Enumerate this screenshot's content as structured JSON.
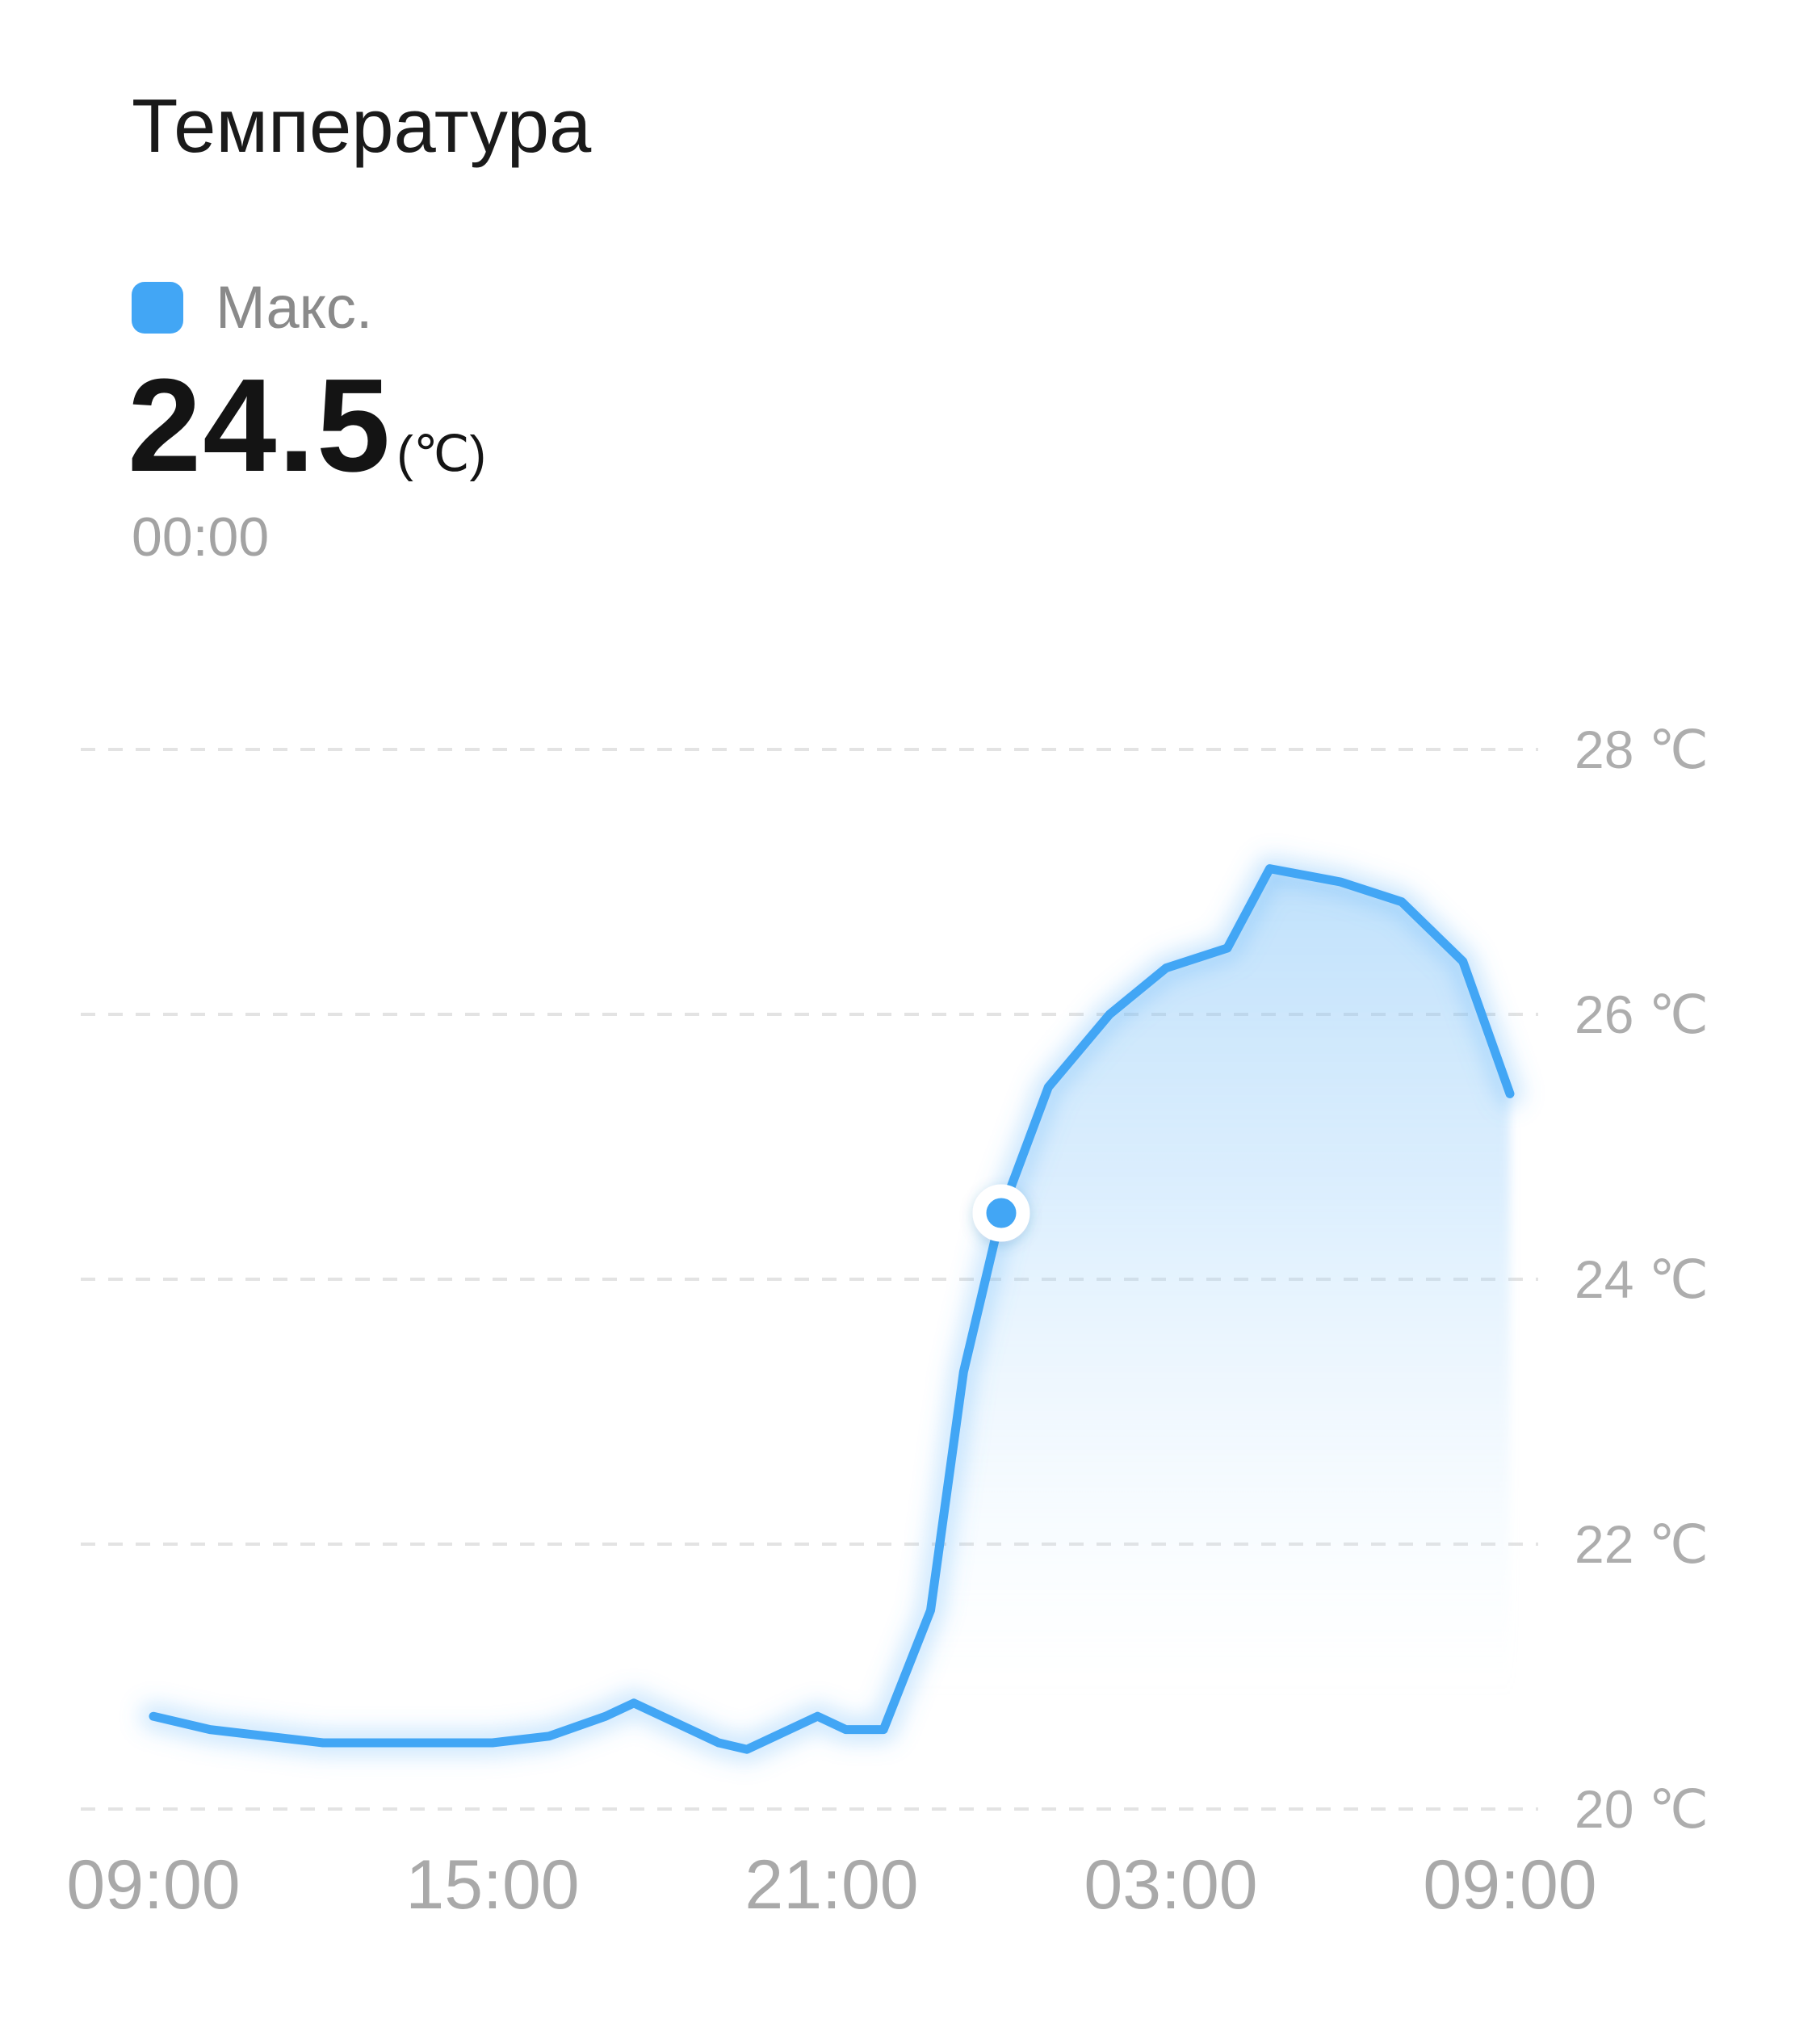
{
  "header": {
    "title": "Температура",
    "legend": {
      "label": "Макс.",
      "color": "#42a6f5"
    }
  },
  "reading": {
    "value": "24.5",
    "unit": "(℃)",
    "time": "00:00"
  },
  "chart_data": {
    "type": "line",
    "title": "Температура",
    "xlabel": "",
    "ylabel": "",
    "unit": "℃",
    "x_ticks": [
      "09:00",
      "15:00",
      "21:00",
      "03:00",
      "09:00"
    ],
    "y_ticks": [
      28,
      26,
      24,
      22,
      20
    ],
    "y_tick_labels": [
      "28 ℃",
      "26 ℃",
      "24 ℃",
      "22 ℃",
      "20 ℃"
    ],
    "ylim": [
      19.8,
      28.6
    ],
    "grid": "horizontal-dashed",
    "legend_position": "top-left",
    "line_color": "#42a6f5",
    "fill": "gradient-below-line-from-selection",
    "fill_start_time": "21:55",
    "selected_point": {
      "time": "00:00",
      "value": 24.5
    },
    "series": [
      {
        "name": "Макс.",
        "points": [
          {
            "time": "09:00",
            "value": 20.7
          },
          {
            "time": "10:00",
            "value": 20.6
          },
          {
            "time": "11:00",
            "value": 20.55
          },
          {
            "time": "12:00",
            "value": 20.5
          },
          {
            "time": "13:00",
            "value": 20.5
          },
          {
            "time": "14:00",
            "value": 20.5
          },
          {
            "time": "15:00",
            "value": 20.5
          },
          {
            "time": "16:00",
            "value": 20.55
          },
          {
            "time": "17:00",
            "value": 20.7
          },
          {
            "time": "17:30",
            "value": 20.8
          },
          {
            "time": "18:00",
            "value": 20.7
          },
          {
            "time": "19:00",
            "value": 20.5
          },
          {
            "time": "19:30",
            "value": 20.45
          },
          {
            "time": "20:45",
            "value": 20.7
          },
          {
            "time": "21:15",
            "value": 20.6
          },
          {
            "time": "21:55",
            "value": 20.6
          },
          {
            "time": "22:45",
            "value": 21.5
          },
          {
            "time": "23:20",
            "value": 23.3
          },
          {
            "time": "00:00",
            "value": 24.5
          },
          {
            "time": "00:50",
            "value": 25.45
          },
          {
            "time": "01:55",
            "value": 26.0
          },
          {
            "time": "02:55",
            "value": 26.35
          },
          {
            "time": "04:00",
            "value": 26.5
          },
          {
            "time": "04:45",
            "value": 27.1
          },
          {
            "time": "06:00",
            "value": 27.0
          },
          {
            "time": "07:05",
            "value": 26.85
          },
          {
            "time": "08:10",
            "value": 26.4
          },
          {
            "time": "09:00",
            "value": 25.4
          }
        ]
      }
    ]
  }
}
